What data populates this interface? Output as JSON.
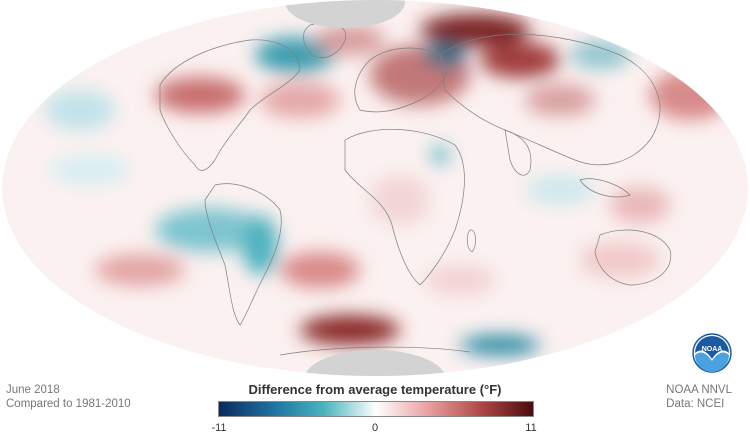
{
  "caption": {
    "date": "June 2018",
    "baseline": "Compared to 1981-2010"
  },
  "credit": {
    "agency": "NOAA NNVL",
    "data_source": "Data: NCEI"
  },
  "legend": {
    "title": "Difference from average temperature (°F)",
    "ticks": [
      "-11",
      "0",
      "11"
    ],
    "colors": [
      "#0a2a5c",
      "#1f6fa0",
      "#48b3bd",
      "#ffffff",
      "#e8a0a0",
      "#b04848",
      "#4a0c0c"
    ]
  },
  "logo": {
    "text": "NOAA",
    "icon": "noaa-logo-icon"
  },
  "map": {
    "projection": "ellipse (Hammer-like)",
    "ocean_fill": "#faf4f3",
    "polar_cap_color": "#d3d3d3"
  }
}
